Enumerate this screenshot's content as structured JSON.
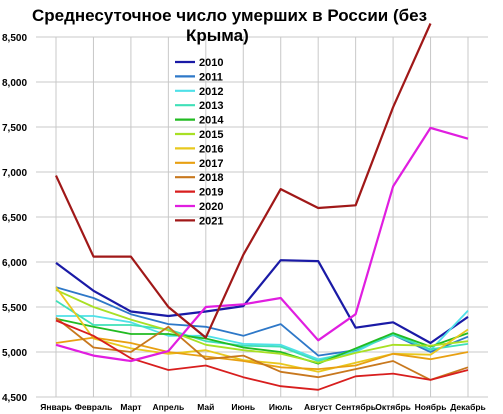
{
  "chart_data": {
    "type": "line",
    "title": "Среднесуточное число умерших в России (без Крыма)",
    "title_lines": [
      "Среднесуточное число умерших в России (без",
      "Крыма)"
    ],
    "xlabel": "",
    "ylabel": "",
    "categories": [
      "Январь",
      "Февраль",
      "Март",
      "Апрель",
      "Май",
      "Июнь",
      "Июль",
      "Август",
      "Сентябрь",
      "Октябрь",
      "Ноябрь",
      "Декабрь"
    ],
    "ylim": [
      4500,
      8500
    ],
    "y_ticks": [
      4500,
      5000,
      5500,
      6000,
      6500,
      7000,
      7500,
      8000,
      8500
    ],
    "y_tick_labels": [
      "4,500",
      "5,000",
      "5,500",
      "6,000",
      "6,500",
      "7,000",
      "7,500",
      "8,000",
      "8,500"
    ],
    "grid": true,
    "legend_position": "upper-center",
    "series": [
      {
        "name": "2010",
        "color": "#1a1aa6",
        "values": [
          5990,
          5680,
          5450,
          5400,
          5450,
          5510,
          6020,
          6010,
          5270,
          5330,
          5100,
          5390
        ]
      },
      {
        "name": "2011",
        "color": "#2e78c8",
        "values": [
          5720,
          5600,
          5420,
          5310,
          5280,
          5180,
          5310,
          4960,
          5020,
          5190,
          5000,
          5170
        ]
      },
      {
        "name": "2012",
        "color": "#4fe0e8",
        "values": [
          5400,
          5400,
          5330,
          5180,
          5180,
          5090,
          5080,
          4920,
          5000,
          5210,
          5020,
          5460
        ]
      },
      {
        "name": "2013",
        "color": "#3fe0b8",
        "values": [
          5570,
          5300,
          5300,
          5250,
          5120,
          5070,
          5060,
          4900,
          5030,
          5190,
          5030,
          5090
        ]
      },
      {
        "name": "2014",
        "color": "#22bb22",
        "values": [
          5370,
          5280,
          5200,
          5200,
          5150,
          5050,
          5000,
          4870,
          5040,
          5210,
          5060,
          5210
        ]
      },
      {
        "name": "2015",
        "color": "#a8e024",
        "values": [
          5690,
          5500,
          5360,
          5240,
          5080,
          5020,
          4980,
          4880,
          4990,
          5080,
          5070,
          5120
        ]
      },
      {
        "name": "2016",
        "color": "#e8c81e",
        "values": [
          5720,
          5150,
          5040,
          4980,
          5020,
          4910,
          4870,
          4780,
          4880,
          4980,
          4970,
          5250
        ]
      },
      {
        "name": "2017",
        "color": "#e8a012",
        "values": [
          5100,
          5160,
          5100,
          5000,
          4950,
          4900,
          4830,
          4810,
          4850,
          4980,
          4920,
          5000
        ]
      },
      {
        "name": "2018",
        "color": "#c8781e",
        "values": [
          5380,
          5050,
          5000,
          5280,
          4920,
          4960,
          4780,
          4720,
          4810,
          4900,
          4690,
          4830
        ]
      },
      {
        "name": "2019",
        "color": "#d81e1e",
        "values": [
          5350,
          5180,
          4930,
          4800,
          4850,
          4720,
          4620,
          4580,
          4730,
          4760,
          4690,
          4800
        ]
      },
      {
        "name": "2020",
        "color": "#e01ee0",
        "values": [
          5080,
          4960,
          4900,
          5010,
          5500,
          5530,
          5600,
          5130,
          5420,
          6840,
          7490,
          7370
        ]
      },
      {
        "name": "2021",
        "color": "#a01818",
        "values": [
          6960,
          6060,
          6060,
          5500,
          5160,
          6080,
          6810,
          6600,
          6630,
          7720,
          8650,
          null
        ]
      }
    ]
  }
}
